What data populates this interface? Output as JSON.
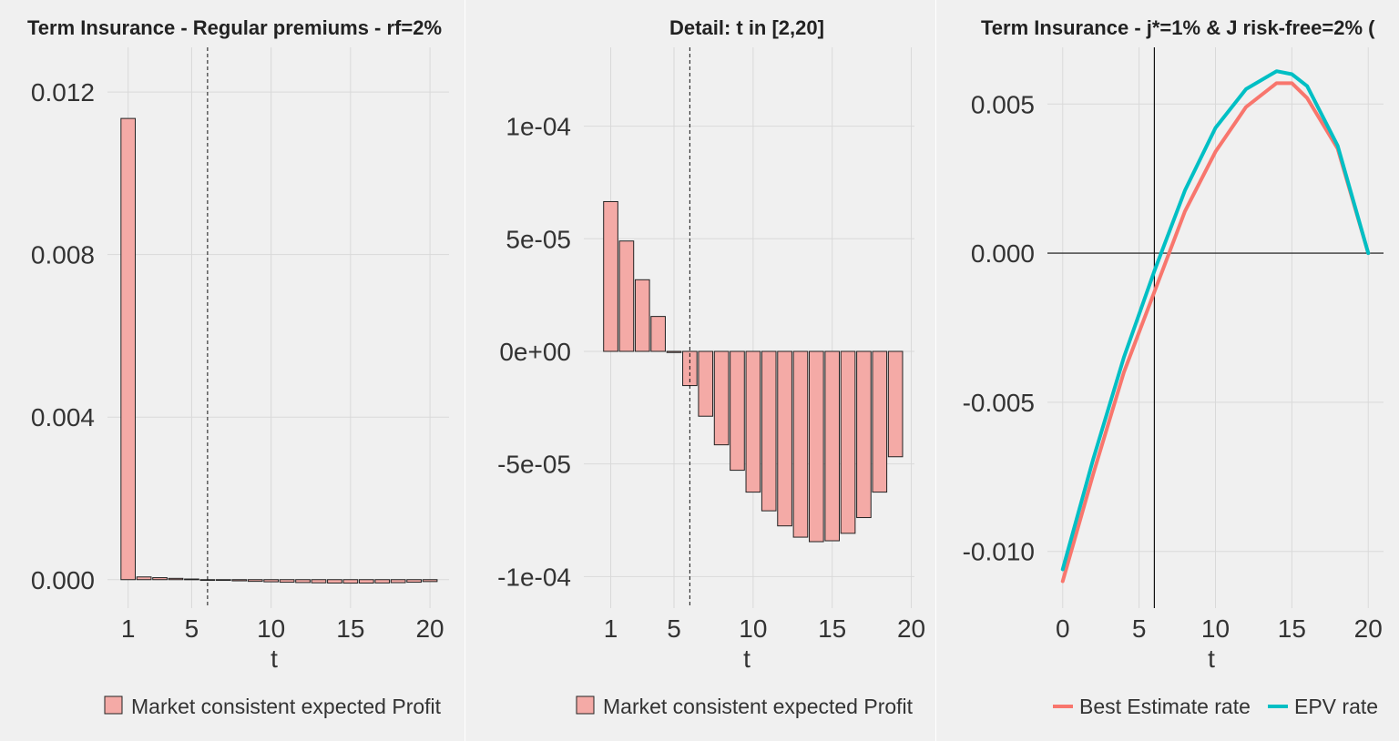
{
  "colors": {
    "background": "#f0f0f0",
    "grid": "#d9d9d9",
    "bar_fill": "#f4aaa6",
    "bar_stroke": "#222222",
    "best_estimate": "#f8766d",
    "epv": "#00bfc4"
  },
  "chart_data": [
    {
      "type": "bar",
      "title": "Term Insurance - Regular premiums - rf=2%",
      "xlabel": "t",
      "ylabel": "",
      "x": [
        1,
        2,
        3,
        4,
        5,
        6,
        7,
        8,
        9,
        10,
        11,
        12,
        13,
        14,
        15,
        16,
        17,
        18,
        19,
        20
      ],
      "values": [
        0.01135,
        6.7e-05,
        4.9e-05,
        3.2e-05,
        1.6e-05,
        -5e-07,
        -1.5e-05,
        -2.9e-05,
        -4.2e-05,
        -5.3e-05,
        -6.3e-05,
        -7.1e-05,
        -7.8e-05,
        -8.3e-05,
        -8.5e-05,
        -8.4e-05,
        -8.1e-05,
        -7.4e-05,
        -6.3e-05,
        -4.7e-05
      ],
      "xlim": [
        -0.3,
        21.2
      ],
      "ylim": [
        -0.0007,
        0.0131
      ],
      "x_ticks": [
        {
          "v": 1,
          "label": "1"
        },
        {
          "v": 5,
          "label": "5"
        },
        {
          "v": 10,
          "label": "10"
        },
        {
          "v": 15,
          "label": "15"
        },
        {
          "v": 20,
          "label": "20"
        }
      ],
      "y_ticks": [
        {
          "v": 0,
          "label": "0.000"
        },
        {
          "v": 0.004,
          "label": "0.004"
        },
        {
          "v": 0.008,
          "label": "0.008"
        },
        {
          "v": 0.012,
          "label": "0.012"
        }
      ],
      "vline": 6,
      "grid": true,
      "legend": "bottom",
      "legend_entries": [
        "Market consistent expected Profit"
      ]
    },
    {
      "type": "bar",
      "title": "Detail: t in [2,20]",
      "xlabel": "t",
      "ylabel": "",
      "x": [
        2,
        3,
        4,
        5,
        6,
        7,
        8,
        9,
        10,
        11,
        12,
        13,
        14,
        15,
        16,
        17,
        18,
        19,
        20
      ],
      "values": [
        6.65e-05,
        4.9e-05,
        3.18e-05,
        1.55e-05,
        -5e-07,
        -1.52e-05,
        -2.88e-05,
        -4.15e-05,
        -5.28e-05,
        -6.25e-05,
        -7.08e-05,
        -7.75e-05,
        -8.25e-05,
        -8.45e-05,
        -8.41e-05,
        -8.08e-05,
        -7.38e-05,
        -6.25e-05,
        -4.68e-05
      ],
      "xlim": [
        0.3,
        21.2
      ],
      "ylim": [
        -0.000114,
        0.000135
      ],
      "x_ticks": [
        {
          "v": 2,
          "label": "1"
        },
        {
          "v": 6,
          "label": "5"
        },
        {
          "v": 11,
          "label": "10"
        },
        {
          "v": 16,
          "label": "15"
        },
        {
          "v": 21,
          "label": "20"
        }
      ],
      "y_ticks": [
        {
          "v": -0.0001,
          "label": "-1e-04"
        },
        {
          "v": -5e-05,
          "label": "-5e-05"
        },
        {
          "v": 0,
          "label": "0e+00"
        },
        {
          "v": 5e-05,
          "label": "5e-05"
        },
        {
          "v": 0.0001,
          "label": "1e-04"
        }
      ],
      "vline": 7,
      "grid": true,
      "legend": "bottom",
      "legend_entries": [
        "Market consistent expected Profit"
      ]
    },
    {
      "type": "line",
      "title": "Term Insurance - j*=1% & J risk-free=2% (",
      "xlabel": "t",
      "ylabel": "",
      "xlim": [
        -1,
        21
      ],
      "ylim": [
        -0.0119,
        0.0069
      ],
      "x_ticks": [
        {
          "v": 0,
          "label": "0"
        },
        {
          "v": 5,
          "label": "5"
        },
        {
          "v": 10,
          "label": "10"
        },
        {
          "v": 15,
          "label": "15"
        },
        {
          "v": 20,
          "label": "20"
        }
      ],
      "y_ticks": [
        {
          "v": -0.01,
          "label": "-0.010"
        },
        {
          "v": -0.005,
          "label": "-0.005"
        },
        {
          "v": 0,
          "label": "0.000"
        },
        {
          "v": 0.005,
          "label": "0.005"
        }
      ],
      "vline": 6,
      "hline": 0,
      "grid": true,
      "legend": "bottom",
      "series": [
        {
          "name": "Best Estimate rate",
          "color": "#f8766d",
          "x": [
            0,
            2,
            4,
            6,
            8,
            10,
            12,
            14,
            15,
            16,
            18,
            20
          ],
          "values": [
            -0.011,
            -0.0074,
            -0.004,
            -0.0013,
            0.0014,
            0.0034,
            0.0049,
            0.0057,
            0.0057,
            0.0052,
            0.0035,
            0.0
          ]
        },
        {
          "name": "EPV rate",
          "color": "#00bfc4",
          "x": [
            0,
            2,
            4,
            6,
            8,
            10,
            12,
            14,
            15,
            16,
            18,
            20
          ],
          "values": [
            -0.0106,
            -0.0069,
            -0.0035,
            -0.0006,
            0.0021,
            0.0042,
            0.0055,
            0.0061,
            0.006,
            0.0056,
            0.0036,
            0.0
          ]
        }
      ]
    }
  ]
}
